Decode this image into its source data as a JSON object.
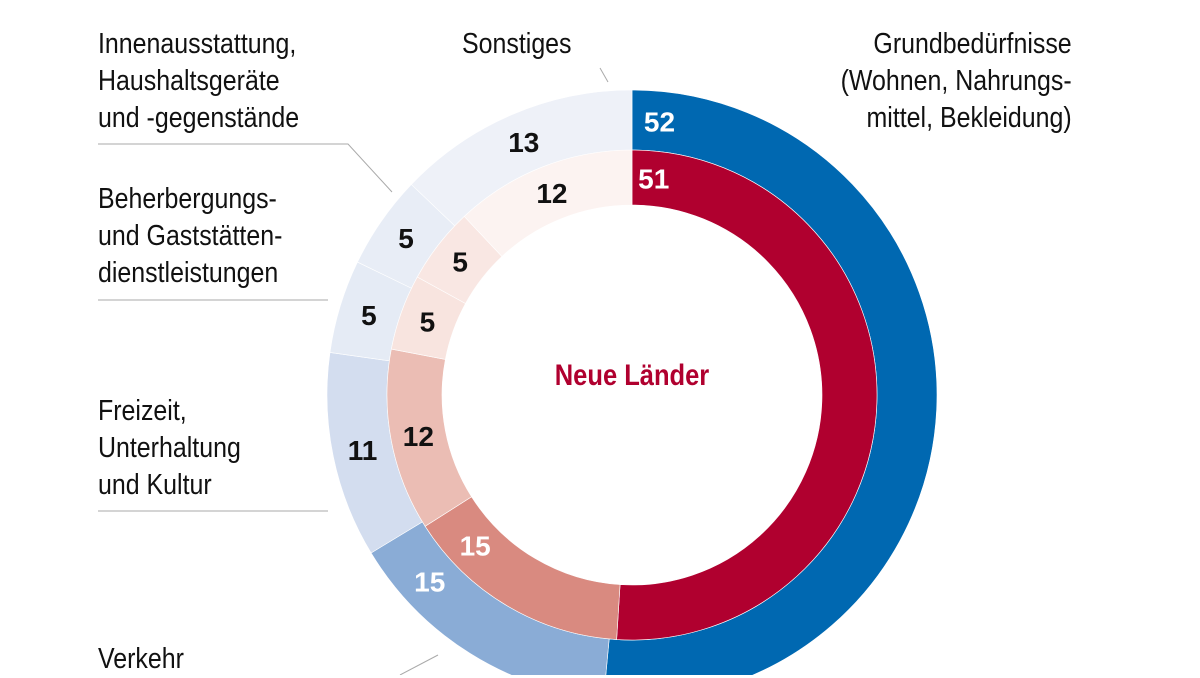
{
  "chart_data": {
    "type": "pie",
    "variant": "double-donut",
    "center_label": "Neue Länder",
    "categories": [
      "Grundbedürfnisse (Wohnen, Nahrungs-mittel, Bekleidung)",
      "Verkehr",
      "Freizeit, Unterhaltung und Kultur",
      "Beherbergungs- und Gaststätten-dienstleistungen",
      "Innenausstattung, Haushaltsgeräte und -gegenstände",
      "Sonstiges"
    ],
    "category_labels": [
      "Grundbedürfnisse\n(Wohnen, Nahrungs-\nmittel, Bekleidung)",
      "Verkehr",
      "Freizeit,\nUnterhaltung\nund Kultur",
      "Beherbergungs-\nund Gaststätten-\ndienstleistungen",
      "Innenausstattung,\nHaushaltsgeräte\nund -gegenstände",
      "Sonstiges"
    ],
    "series": [
      {
        "ring": "outer",
        "values": [
          52,
          15,
          11,
          5,
          5,
          13
        ],
        "colors": [
          "#0068b1",
          "#8aacd6",
          "#d3ddef",
          "#e5ebf5",
          "#e8edf6",
          "#eef1f8"
        ],
        "label_colors": [
          "#ffffff",
          "#ffffff",
          "#111111",
          "#111111",
          "#111111",
          "#111111"
        ]
      },
      {
        "ring": "inner",
        "name": "Neue Länder",
        "values": [
          51,
          15,
          12,
          5,
          5,
          12
        ],
        "colors": [
          "#b0002f",
          "#d98a80",
          "#ebbdb4",
          "#f8e4df",
          "#f9e7e3",
          "#fcf3f1"
        ],
        "label_colors": [
          "#ffffff",
          "#ffffff",
          "#111111",
          "#111111",
          "#111111",
          "#111111"
        ]
      }
    ]
  }
}
